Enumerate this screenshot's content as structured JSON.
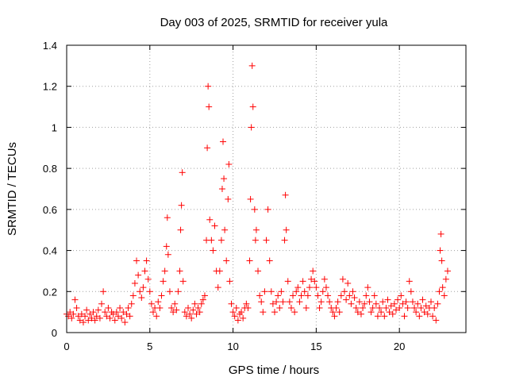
{
  "chart_data": {
    "type": "scatter",
    "title": "Day 003 of 2025, SRMTID for receiver yula",
    "xlabel": "GPS time / hours",
    "ylabel": "SRMTID / TECUs",
    "xlim": [
      0,
      24
    ],
    "ylim": [
      0,
      1.4
    ],
    "xticks": [
      0,
      5,
      10,
      15,
      20
    ],
    "xtick_labels": [
      "0",
      "5",
      "10",
      "15",
      "20"
    ],
    "yticks": [
      0,
      0.2,
      0.4,
      0.6,
      0.8,
      1,
      1.2,
      1.4
    ],
    "ytick_labels": [
      "0",
      "0.2",
      "0.4",
      "0.6",
      "0.8",
      "1",
      "1.2",
      "1.4"
    ],
    "grid": true,
    "marker": "+",
    "marker_color": "#ff0000",
    "series": [
      {
        "name": "SRMTID",
        "points": [
          [
            0.0,
            0.09
          ],
          [
            0.1,
            0.08
          ],
          [
            0.2,
            0.1
          ],
          [
            0.3,
            0.07
          ],
          [
            0.4,
            0.09
          ],
          [
            0.5,
            0.16
          ],
          [
            0.6,
            0.12
          ],
          [
            0.7,
            0.08
          ],
          [
            0.8,
            0.06
          ],
          [
            0.9,
            0.09
          ],
          [
            1.0,
            0.05
          ],
          [
            1.1,
            0.08
          ],
          [
            1.2,
            0.11
          ],
          [
            1.3,
            0.06
          ],
          [
            1.4,
            0.09
          ],
          [
            1.5,
            0.07
          ],
          [
            1.6,
            0.1
          ],
          [
            1.7,
            0.06
          ],
          [
            1.8,
            0.08
          ],
          [
            1.9,
            0.11
          ],
          [
            2.0,
            0.07
          ],
          [
            2.1,
            0.14
          ],
          [
            2.2,
            0.2
          ],
          [
            2.3,
            0.1
          ],
          [
            2.4,
            0.08
          ],
          [
            2.5,
            0.12
          ],
          [
            2.6,
            0.07
          ],
          [
            2.7,
            0.1
          ],
          [
            2.8,
            0.09
          ],
          [
            2.9,
            0.06
          ],
          [
            3.0,
            0.1
          ],
          [
            3.1,
            0.08
          ],
          [
            3.2,
            0.12
          ],
          [
            3.3,
            0.07
          ],
          [
            3.4,
            0.1
          ],
          [
            3.5,
            0.05
          ],
          [
            3.6,
            0.09
          ],
          [
            3.7,
            0.12
          ],
          [
            3.8,
            0.08
          ],
          [
            3.9,
            0.14
          ],
          [
            4.0,
            0.18
          ],
          [
            4.1,
            0.24
          ],
          [
            4.2,
            0.35
          ],
          [
            4.3,
            0.28
          ],
          [
            4.4,
            0.2
          ],
          [
            4.5,
            0.17
          ],
          [
            4.6,
            0.22
          ],
          [
            4.7,
            0.3
          ],
          [
            4.8,
            0.35
          ],
          [
            4.9,
            0.26
          ],
          [
            5.0,
            0.2
          ],
          [
            5.1,
            0.14
          ],
          [
            5.2,
            0.1
          ],
          [
            5.3,
            0.12
          ],
          [
            5.4,
            0.08
          ],
          [
            5.5,
            0.15
          ],
          [
            5.6,
            0.12
          ],
          [
            5.7,
            0.18
          ],
          [
            5.8,
            0.25
          ],
          [
            5.9,
            0.3
          ],
          [
            6.0,
            0.42
          ],
          [
            6.05,
            0.56
          ],
          [
            6.1,
            0.38
          ],
          [
            6.2,
            0.2
          ],
          [
            6.3,
            0.12
          ],
          [
            6.4,
            0.1
          ],
          [
            6.5,
            0.14
          ],
          [
            6.6,
            0.11
          ],
          [
            6.7,
            0.2
          ],
          [
            6.8,
            0.3
          ],
          [
            6.85,
            0.5
          ],
          [
            6.9,
            0.62
          ],
          [
            6.95,
            0.78
          ],
          [
            7.0,
            0.25
          ],
          [
            7.1,
            0.1
          ],
          [
            7.2,
            0.08
          ],
          [
            7.3,
            0.12
          ],
          [
            7.4,
            0.09
          ],
          [
            7.5,
            0.07
          ],
          [
            7.6,
            0.11
          ],
          [
            7.7,
            0.14
          ],
          [
            7.8,
            0.09
          ],
          [
            7.9,
            0.12
          ],
          [
            8.0,
            0.1
          ],
          [
            8.1,
            0.14
          ],
          [
            8.2,
            0.16
          ],
          [
            8.3,
            0.18
          ],
          [
            8.4,
            0.45
          ],
          [
            8.45,
            0.9
          ],
          [
            8.5,
            1.2
          ],
          [
            8.55,
            1.1
          ],
          [
            8.6,
            0.55
          ],
          [
            8.7,
            0.45
          ],
          [
            8.8,
            0.4
          ],
          [
            8.9,
            0.52
          ],
          [
            9.0,
            0.3
          ],
          [
            9.1,
            0.22
          ],
          [
            9.2,
            0.3
          ],
          [
            9.3,
            0.45
          ],
          [
            9.35,
            0.7
          ],
          [
            9.4,
            0.93
          ],
          [
            9.45,
            0.75
          ],
          [
            9.5,
            0.5
          ],
          [
            9.6,
            0.35
          ],
          [
            9.7,
            0.65
          ],
          [
            9.75,
            0.82
          ],
          [
            9.8,
            0.25
          ],
          [
            9.9,
            0.14
          ],
          [
            10.0,
            0.1
          ],
          [
            10.1,
            0.08
          ],
          [
            10.2,
            0.12
          ],
          [
            10.3,
            0.06
          ],
          [
            10.4,
            0.09
          ],
          [
            10.5,
            0.1
          ],
          [
            10.6,
            0.07
          ],
          [
            10.7,
            0.12
          ],
          [
            10.8,
            0.14
          ],
          [
            10.9,
            0.12
          ],
          [
            11.0,
            0.35
          ],
          [
            11.05,
            0.65
          ],
          [
            11.1,
            1.0
          ],
          [
            11.15,
            1.3
          ],
          [
            11.2,
            1.1
          ],
          [
            11.3,
            0.6
          ],
          [
            11.35,
            0.45
          ],
          [
            11.4,
            0.5
          ],
          [
            11.5,
            0.3
          ],
          [
            11.6,
            0.18
          ],
          [
            11.7,
            0.15
          ],
          [
            11.8,
            0.1
          ],
          [
            11.9,
            0.2
          ],
          [
            12.0,
            0.45
          ],
          [
            12.1,
            0.6
          ],
          [
            12.2,
            0.35
          ],
          [
            12.3,
            0.2
          ],
          [
            12.4,
            0.14
          ],
          [
            12.5,
            0.1
          ],
          [
            12.6,
            0.15
          ],
          [
            12.7,
            0.18
          ],
          [
            12.8,
            0.12
          ],
          [
            12.9,
            0.2
          ],
          [
            13.0,
            0.15
          ],
          [
            13.1,
            0.45
          ],
          [
            13.15,
            0.67
          ],
          [
            13.2,
            0.5
          ],
          [
            13.3,
            0.25
          ],
          [
            13.4,
            0.15
          ],
          [
            13.5,
            0.12
          ],
          [
            13.6,
            0.18
          ],
          [
            13.7,
            0.1
          ],
          [
            13.8,
            0.2
          ],
          [
            13.9,
            0.22
          ],
          [
            14.0,
            0.15
          ],
          [
            14.1,
            0.18
          ],
          [
            14.2,
            0.25
          ],
          [
            14.3,
            0.2
          ],
          [
            14.4,
            0.12
          ],
          [
            14.5,
            0.18
          ],
          [
            14.6,
            0.22
          ],
          [
            14.7,
            0.26
          ],
          [
            14.8,
            0.3
          ],
          [
            14.9,
            0.25
          ],
          [
            15.0,
            0.22
          ],
          [
            15.1,
            0.18
          ],
          [
            15.2,
            0.12
          ],
          [
            15.3,
            0.15
          ],
          [
            15.4,
            0.2
          ],
          [
            15.5,
            0.26
          ],
          [
            15.6,
            0.22
          ],
          [
            15.7,
            0.18
          ],
          [
            15.8,
            0.15
          ],
          [
            15.9,
            0.12
          ],
          [
            16.0,
            0.1
          ],
          [
            16.1,
            0.08
          ],
          [
            16.2,
            0.12
          ],
          [
            16.3,
            0.15
          ],
          [
            16.4,
            0.1
          ],
          [
            16.5,
            0.18
          ],
          [
            16.6,
            0.26
          ],
          [
            16.7,
            0.2
          ],
          [
            16.8,
            0.16
          ],
          [
            16.9,
            0.24
          ],
          [
            17.0,
            0.18
          ],
          [
            17.1,
            0.14
          ],
          [
            17.2,
            0.2
          ],
          [
            17.3,
            0.17
          ],
          [
            17.4,
            0.12
          ],
          [
            17.5,
            0.1
          ],
          [
            17.6,
            0.15
          ],
          [
            17.7,
            0.09
          ],
          [
            17.8,
            0.12
          ],
          [
            17.9,
            0.14
          ],
          [
            18.0,
            0.18
          ],
          [
            18.1,
            0.22
          ],
          [
            18.2,
            0.15
          ],
          [
            18.3,
            0.1
          ],
          [
            18.4,
            0.12
          ],
          [
            18.5,
            0.18
          ],
          [
            18.6,
            0.14
          ],
          [
            18.7,
            0.08
          ],
          [
            18.8,
            0.12
          ],
          [
            18.9,
            0.1
          ],
          [
            19.0,
            0.15
          ],
          [
            19.1,
            0.08
          ],
          [
            19.2,
            0.12
          ],
          [
            19.3,
            0.16
          ],
          [
            19.4,
            0.1
          ],
          [
            19.5,
            0.13
          ],
          [
            19.6,
            0.09
          ],
          [
            19.7,
            0.14
          ],
          [
            19.8,
            0.11
          ],
          [
            19.9,
            0.16
          ],
          [
            20.0,
            0.12
          ],
          [
            20.1,
            0.18
          ],
          [
            20.2,
            0.14
          ],
          [
            20.3,
            0.08
          ],
          [
            20.4,
            0.15
          ],
          [
            20.5,
            0.12
          ],
          [
            20.6,
            0.25
          ],
          [
            20.7,
            0.2
          ],
          [
            20.8,
            0.15
          ],
          [
            20.9,
            0.12
          ],
          [
            21.0,
            0.1
          ],
          [
            21.1,
            0.14
          ],
          [
            21.2,
            0.08
          ],
          [
            21.3,
            0.12
          ],
          [
            21.4,
            0.16
          ],
          [
            21.5,
            0.1
          ],
          [
            21.6,
            0.13
          ],
          [
            21.7,
            0.09
          ],
          [
            21.8,
            0.12
          ],
          [
            21.9,
            0.15
          ],
          [
            22.0,
            0.08
          ],
          [
            22.1,
            0.12
          ],
          [
            22.2,
            0.06
          ],
          [
            22.3,
            0.14
          ],
          [
            22.4,
            0.2
          ],
          [
            22.45,
            0.4
          ],
          [
            22.5,
            0.48
          ],
          [
            22.55,
            0.35
          ],
          [
            22.6,
            0.22
          ],
          [
            22.7,
            0.18
          ],
          [
            22.8,
            0.26
          ],
          [
            22.9,
            0.3
          ]
        ]
      }
    ]
  }
}
